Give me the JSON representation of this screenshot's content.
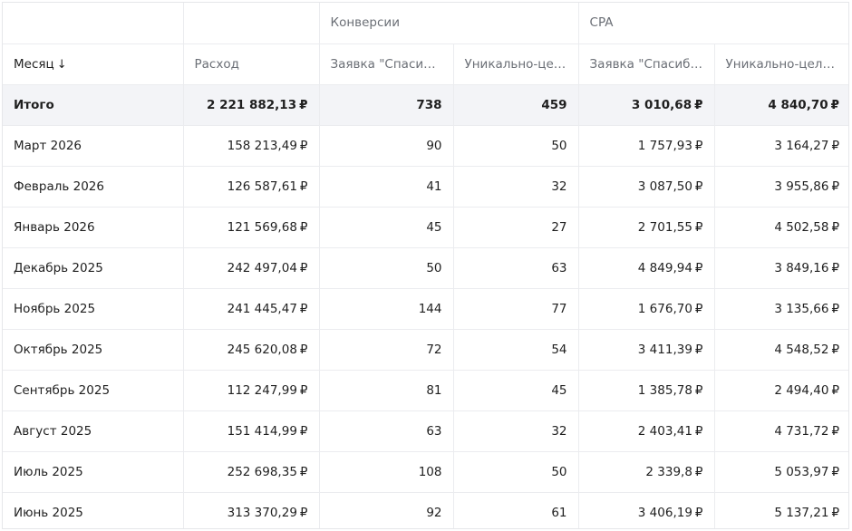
{
  "header": {
    "group_conversions": "Конверсии",
    "group_cpa": "CPA",
    "col_month": "Месяц",
    "sort_arrow": "↓",
    "col_spend": "Расход",
    "col_conv_request": "Заявка \"Спасибо\"",
    "col_conv_unique": "Уникально-целевой визит",
    "col_cpa_request": "Заявка \"Спасибо\"",
    "col_cpa_unique": "Уникально-целевой визит"
  },
  "currency": "₽",
  "total": {
    "label": "Итого",
    "spend": "2 221 882,13",
    "conv_request": "738",
    "conv_unique": "459",
    "cpa_request": "3 010,68",
    "cpa_unique": "4 840,70"
  },
  "rows": [
    {
      "month": "Март 2026",
      "spend": "158 213,49",
      "conv_request": "90",
      "conv_unique": "50",
      "cpa_request": "1 757,93",
      "cpa_unique": "3 164,27"
    },
    {
      "month": "Февраль 2026",
      "spend": "126 587,61",
      "conv_request": "41",
      "conv_unique": "32",
      "cpa_request": "3 087,50",
      "cpa_unique": "3 955,86"
    },
    {
      "month": "Январь 2026",
      "spend": "121 569,68",
      "conv_request": "45",
      "conv_unique": "27",
      "cpa_request": "2 701,55",
      "cpa_unique": "4 502,58"
    },
    {
      "month": "Декабрь 2025",
      "spend": "242 497,04",
      "conv_request": "50",
      "conv_unique": "63",
      "cpa_request": "4 849,94",
      "cpa_unique": "3 849,16"
    },
    {
      "month": "Ноябрь 2025",
      "spend": "241 445,47",
      "conv_request": "144",
      "conv_unique": "77",
      "cpa_request": "1 676,70",
      "cpa_unique": "3 135,66"
    },
    {
      "month": "Октябрь 2025",
      "spend": "245 620,08",
      "conv_request": "72",
      "conv_unique": "54",
      "cpa_request": "3 411,39",
      "cpa_unique": "4 548,52"
    },
    {
      "month": "Сентябрь 2025",
      "spend": "112 247,99",
      "conv_request": "81",
      "conv_unique": "45",
      "cpa_request": "1 385,78",
      "cpa_unique": "2 494,40"
    },
    {
      "month": "Август 2025",
      "spend": "151 414,99",
      "conv_request": "63",
      "conv_unique": "32",
      "cpa_request": "2 403,41",
      "cpa_unique": "4 731,72"
    },
    {
      "month": "Июль 2025",
      "spend": "252 698,35",
      "conv_request": "108",
      "conv_unique": "50",
      "cpa_request": "2 339,8",
      "cpa_unique": "5 053,97"
    },
    {
      "month": "Июнь 2025",
      "spend": "313 370,29",
      "conv_request": "92",
      "conv_unique": "61",
      "cpa_request": "3 406,19",
      "cpa_unique": "5 137,21"
    }
  ]
}
